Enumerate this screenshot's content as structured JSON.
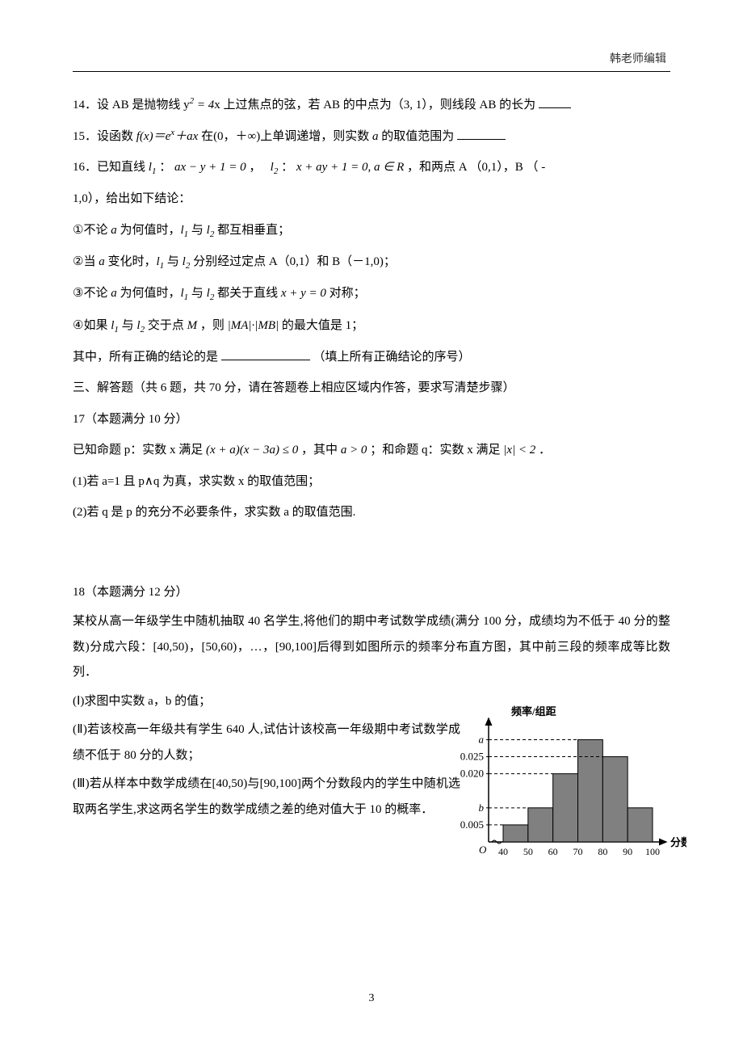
{
  "header": {
    "editor": "韩老师编辑"
  },
  "q14": {
    "prefix": "14．设 AB 是抛物线 ",
    "eq": "y² = 4x",
    "mid": " 上过焦点的弦，若 AB 的中点为（3, 1），则线段 AB 的长为",
    "blank": true
  },
  "q15": {
    "prefix": "15．设函数 ",
    "fx": "f(x)＝eˣ＋ax",
    "mid": " 在(0，＋∞)上单调递增，则实数 ",
    "var": "a",
    "suffix": " 的取值范围为",
    "blank": true
  },
  "q16": {
    "line1_a": "16．已知直线 ",
    "l1": "l₁",
    "colon": "：",
    "eq1": "ax − y + 1 = 0",
    "comma": "，",
    "l2": "l₂",
    "eq2": "x + ay + 1 = 0, a ∈ R",
    "tail": "，和两点 A （0,1），B （ -",
    "line2": "1,0），给出如下结论：",
    "c1": "①不论 a 为何值时，l₁ 与 l₂ 都互相垂直；",
    "c2": "②当 a 变化时，l₁ 与 l₂ 分别经过定点 A（0,1）和 B（－1,0)；",
    "c3a": "③不论 a 为何值时，l₁ 与 l₂ 都关于直线 ",
    "c3eq": "x + y = 0",
    "c3b": " 对称；",
    "c4a": "④如果 l₁ 与 l₂ 交于点 M ，则 ",
    "c4eq": "|MA|·|MB|",
    "c4b": " 的最大值是 1；",
    "conclusion_a": "其中，所有正确的结论的是",
    "conclusion_b": "（填上所有正确结论的序号）"
  },
  "sec3": {
    "title": "三、解答题（共 6 题，共 70 分，请在答题卷上相应区域内作答，要求写清楚步骤）"
  },
  "q17": {
    "head": "17（本题满分 10 分）",
    "body_a": "已知命题 p：实数 x 满足 ",
    "eq1": "(x + a)(x − 3a) ≤ 0",
    "body_b": "，其中 ",
    "eq2": "a > 0",
    "body_c": "；和命题 q：实数 x 满足 ",
    "eq3": "|x| < 2",
    "body_d": "．",
    "p1": "(1)若 a=1 且 p∧q 为真，求实数 x 的取值范围；",
    "p2": "(2)若 q 是 p 的充分不必要条件，求实数 a 的取值范围."
  },
  "q18": {
    "head": "18（本题满分 12 分）",
    "body1": "某校从高一年级学生中随机抽取 40 名学生,将他们的期中考试数学成绩(满分 100 分，成绩均为不低于 40 分的整数)分成六段：[40,50)，[50,60)，…，[90,100]后得到如图所示的频率分布直方图，其中前三段的频率成等比数列．",
    "p1": "(Ⅰ)求图中实数 a，b 的值；",
    "p2": "(Ⅱ)若该校高一年级共有学生 640 人,试估计该校高一年级期中考试数学成绩不低于 80 分的人数；",
    "p3": "(Ⅲ)若从样本中数学成绩在[40,50)与[90,100]两个分数段内的学生中随机选取两名学生,求这两名学生的数学成绩之差的绝对值大于 10 的概率．"
  },
  "chart": {
    "ylabel": "频率/组距",
    "xlabel": "分数",
    "yticks": [
      "a",
      "0.025",
      "0.020",
      "b",
      "0.005"
    ],
    "ytick_vals": [
      0.03,
      0.025,
      0.02,
      0.01,
      0.005
    ],
    "xticks": [
      "40",
      "50",
      "60",
      "70",
      "80",
      "90",
      "100"
    ],
    "bars": [
      0.005,
      0.01,
      0.02,
      0.03,
      0.025,
      0.01
    ],
    "bar_fill": "#808080",
    "bar_stroke": "#000000",
    "axis_color": "#000000",
    "dash_color": "#000000",
    "font_size": 13,
    "origin_label": "O"
  },
  "pageNumber": "3"
}
